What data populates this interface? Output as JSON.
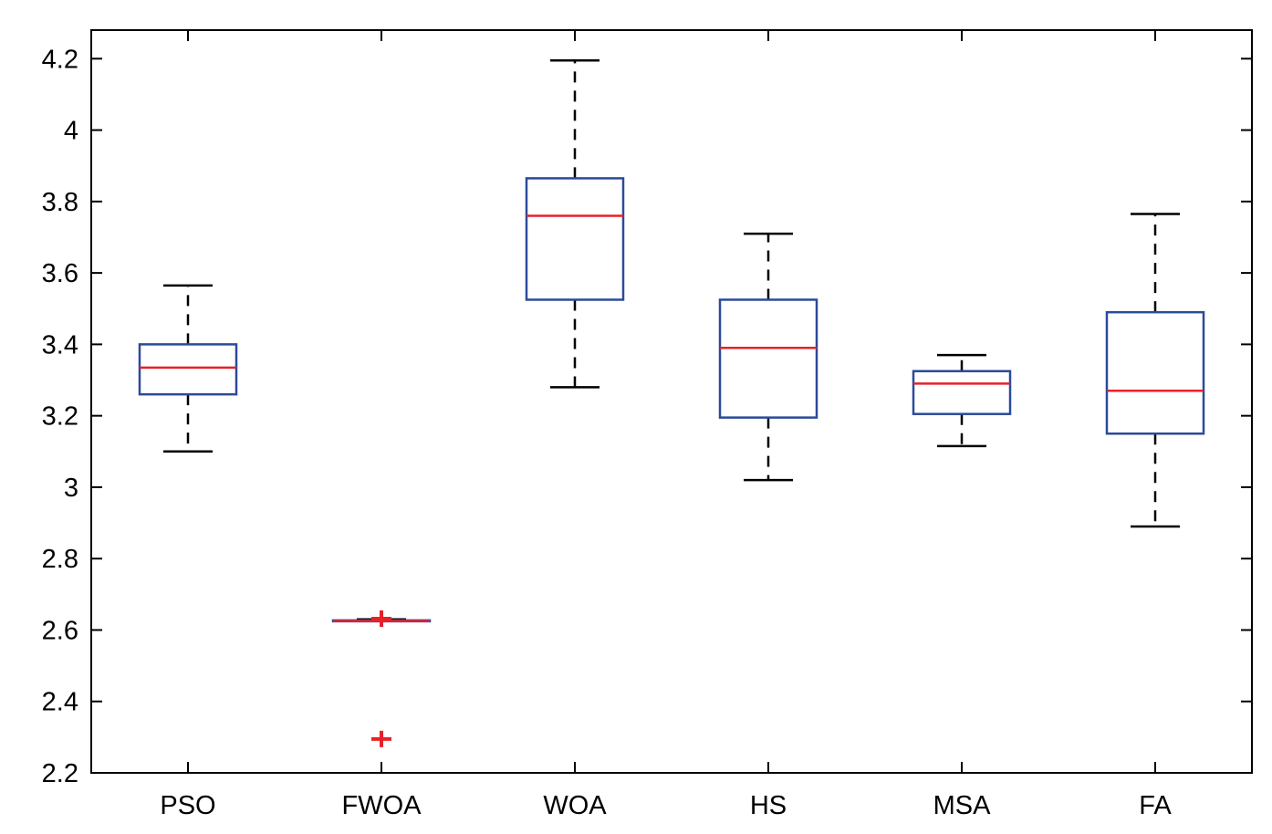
{
  "chart_data": {
    "type": "boxplot",
    "title": "",
    "xlabel": "",
    "ylabel": "",
    "ylim": [
      2.2,
      4.28
    ],
    "yticks": [
      2.2,
      2.4,
      2.6,
      2.8,
      3,
      3.2,
      3.4,
      3.6,
      3.8,
      4,
      4.2
    ],
    "ytick_labels": [
      "2.2",
      "2.4",
      "2.6",
      "2.8",
      "3",
      "3.2",
      "3.4",
      "3.6",
      "3.8",
      "4",
      "4.2"
    ],
    "categories": [
      "PSO",
      "FWOA",
      "WOA",
      "HS",
      "MSA",
      "FA"
    ],
    "boxes": [
      {
        "name": "PSO",
        "whisker_low": 3.1,
        "q1": 3.26,
        "median": 3.335,
        "q3": 3.4,
        "whisker_high": 3.565,
        "outliers": []
      },
      {
        "name": "FWOA",
        "whisker_low": 2.625,
        "q1": 2.625,
        "median": 2.625,
        "q3": 2.627,
        "whisker_high": 2.63,
        "outliers": [
          2.632,
          2.295
        ]
      },
      {
        "name": "WOA",
        "whisker_low": 3.28,
        "q1": 3.525,
        "median": 3.76,
        "q3": 3.865,
        "whisker_high": 4.195,
        "outliers": []
      },
      {
        "name": "HS",
        "whisker_low": 3.02,
        "q1": 3.195,
        "median": 3.39,
        "q3": 3.525,
        "whisker_high": 3.71,
        "outliers": []
      },
      {
        "name": "MSA",
        "whisker_low": 3.115,
        "q1": 3.205,
        "median": 3.29,
        "q3": 3.325,
        "whisker_high": 3.37,
        "outliers": []
      },
      {
        "name": "FA",
        "whisker_low": 2.89,
        "q1": 3.15,
        "median": 3.27,
        "q3": 3.49,
        "whisker_high": 3.765,
        "outliers": []
      }
    ],
    "colors": {
      "box": "#2b4a9a",
      "median": "#e8202a",
      "whisker": "#000000",
      "outlier": "#e8202a",
      "axes": "#000000"
    },
    "grid": false,
    "legend": "none"
  }
}
